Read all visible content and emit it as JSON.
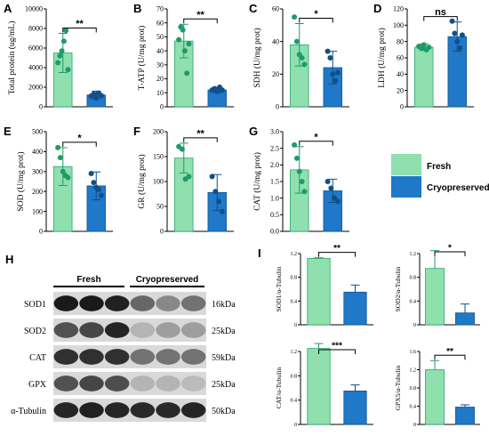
{
  "figure": {
    "colors": {
      "fresh": "#8fe0ae",
      "fresh_edge": "#29a86b",
      "cryo": "#1f78c8",
      "cryo_edge": "#14558f",
      "pt_fresh": "#1f9a69",
      "pt_cryo": "#114f89"
    },
    "legend": {
      "fresh": "Fresh",
      "cryo": "Cryopreserved"
    }
  },
  "chart_data": [
    {
      "id": "A",
      "type": "bar",
      "panel_letter": "A",
      "ylabel": "Total protein (ug/mL)",
      "ylim": [
        0,
        10000
      ],
      "yticks": [
        "0",
        "2000",
        "4000",
        "6000",
        "8000",
        "10000"
      ],
      "ytick_values": [
        0,
        2000,
        4000,
        6000,
        8000,
        10000
      ],
      "significance": "**",
      "series": [
        {
          "name": "Fresh",
          "values": [
            5500
          ],
          "err": 2000,
          "points": [
            4500,
            5200,
            5700,
            6700,
            7800,
            3800
          ]
        },
        {
          "name": "Cryopreserved",
          "values": [
            1200
          ],
          "err": 400,
          "points": [
            1100,
            1300,
            900,
            1400,
            1150
          ]
        }
      ]
    },
    {
      "id": "B",
      "type": "bar",
      "panel_letter": "B",
      "ylabel": "T-ATP (U/mg prot)",
      "ylim": [
        0,
        70
      ],
      "yticks": [
        "0",
        "10",
        "20",
        "30",
        "40",
        "50",
        "60",
        "70"
      ],
      "ytick_values": [
        0,
        10,
        20,
        30,
        40,
        50,
        60,
        70
      ],
      "significance": "**",
      "series": [
        {
          "name": "Fresh",
          "values": [
            47
          ],
          "err": 12,
          "points": [
            48,
            57,
            55,
            40,
            24,
            45
          ]
        },
        {
          "name": "Cryopreserved",
          "values": [
            12
          ],
          "err": 2,
          "points": [
            12,
            13,
            11,
            14,
            12
          ]
        }
      ]
    },
    {
      "id": "C",
      "type": "bar",
      "panel_letter": "C",
      "ylabel": "SDH (U/mg prot)",
      "ylim": [
        0,
        60
      ],
      "yticks": [
        "0",
        "20",
        "40",
        "60"
      ],
      "ytick_values": [
        0,
        20,
        40,
        60
      ],
      "significance": "*",
      "series": [
        {
          "name": "Fresh",
          "values": [
            38
          ],
          "err": 13,
          "points": [
            55,
            40,
            32,
            30,
            26
          ]
        },
        {
          "name": "Cryopreserved",
          "values": [
            24
          ],
          "err": 10,
          "points": [
            34,
            30,
            20,
            16,
            21
          ]
        }
      ]
    },
    {
      "id": "D",
      "type": "bar",
      "panel_letter": "D",
      "ylabel": "LDH (U/mg prot)",
      "ylim": [
        0,
        120
      ],
      "yticks": [
        "0",
        "20",
        "40",
        "60",
        "80",
        "100",
        "120"
      ],
      "ytick_values": [
        0,
        20,
        40,
        60,
        80,
        100,
        120
      ],
      "significance": "ns",
      "series": [
        {
          "name": "Fresh",
          "values": [
            73
          ],
          "err": 4,
          "points": [
            74,
            72,
            76,
            70,
            73
          ]
        },
        {
          "name": "Cryopreserved",
          "values": [
            86
          ],
          "err": 18,
          "points": [
            105,
            90,
            80,
            72,
            88
          ]
        }
      ]
    },
    {
      "id": "E",
      "type": "bar",
      "panel_letter": "E",
      "ylabel": "SOD (U/mg prot)",
      "ylim": [
        0,
        500
      ],
      "yticks": [
        "0",
        "100",
        "200",
        "300",
        "400",
        "500"
      ],
      "ytick_values": [
        0,
        100,
        200,
        300,
        400,
        500
      ],
      "significance": "*",
      "series": [
        {
          "name": "Fresh",
          "values": [
            325
          ],
          "err": 95,
          "points": [
            420,
            370,
            300,
            280,
            270
          ]
        },
        {
          "name": "Cryopreserved",
          "values": [
            228
          ],
          "err": 70,
          "points": [
            290,
            245,
            220,
            210,
            180
          ]
        }
      ]
    },
    {
      "id": "F",
      "type": "bar",
      "panel_letter": "F",
      "ylabel": "GR (U/mg prot)",
      "ylim": [
        0,
        200
      ],
      "yticks": [
        "0",
        "50",
        "100",
        "150",
        "200"
      ],
      "ytick_values": [
        0,
        50,
        100,
        150,
        200
      ],
      "significance": "**",
      "series": [
        {
          "name": "Fresh",
          "values": [
            147
          ],
          "err": 30,
          "points": [
            170,
            165,
            105,
            110
          ]
        },
        {
          "name": "Cryopreserved",
          "values": [
            78
          ],
          "err": 36,
          "points": [
            110,
            80,
            60,
            40
          ]
        }
      ]
    },
    {
      "id": "G",
      "type": "bar",
      "panel_letter": "G",
      "ylabel": "CAT (U/mg prot)",
      "ylim": [
        0,
        3.0
      ],
      "yticks": [
        "0.0",
        "0.5",
        "1.0",
        "1.5",
        "2.0",
        "2.5",
        "3.0"
      ],
      "ytick_values": [
        0,
        0.5,
        1.0,
        1.5,
        2.0,
        2.5,
        3.0
      ],
      "significance": "*",
      "series": [
        {
          "name": "Fresh",
          "values": [
            1.85
          ],
          "err": 0.7,
          "points": [
            2.6,
            2.2,
            1.8,
            1.5,
            1.2
          ]
        },
        {
          "name": "Cryopreserved",
          "values": [
            1.22
          ],
          "err": 0.35,
          "points": [
            1.5,
            1.3,
            1.0,
            0.9
          ]
        }
      ]
    },
    {
      "id": "I1",
      "type": "bar",
      "panel_letter": "I",
      "ylabel": "SOD1/α-Tubulin",
      "ylim": [
        0,
        1.2
      ],
      "yticks": [
        "0",
        "0.4",
        "0.8",
        "1.2"
      ],
      "ytick_values": [
        0,
        0.4,
        0.8,
        1.2
      ],
      "significance": "**",
      "series": [
        {
          "name": "Fresh",
          "values": [
            1.12
          ],
          "err": 0.01,
          "points": []
        },
        {
          "name": "Cryopreserved",
          "values": [
            0.55
          ],
          "err": 0.12,
          "points": []
        }
      ]
    },
    {
      "id": "I2",
      "type": "bar",
      "panel_letter": "",
      "ylabel": "SOD2/α-Tubulin",
      "ylim": [
        0,
        1.2
      ],
      "yticks": [
        "0",
        "0.4",
        "0.8",
        "1.2"
      ],
      "ytick_values": [
        0,
        0.4,
        0.8,
        1.2
      ],
      "significance": "*",
      "series": [
        {
          "name": "Fresh",
          "values": [
            0.95
          ],
          "err": 0.3,
          "points": []
        },
        {
          "name": "Cryopreserved",
          "values": [
            0.2
          ],
          "err": 0.15,
          "points": []
        }
      ]
    },
    {
      "id": "I3",
      "type": "bar",
      "panel_letter": "",
      "ylabel": "CAT/α-Tubulin",
      "ylim": [
        0,
        1.2
      ],
      "yticks": [
        "0",
        "0.4",
        "0.8",
        "1.2"
      ],
      "ytick_values": [
        0,
        0.4,
        0.8,
        1.2
      ],
      "significance": "***",
      "series": [
        {
          "name": "Fresh",
          "values": [
            1.25
          ],
          "err": 0.08,
          "points": []
        },
        {
          "name": "Cryopreserved",
          "values": [
            0.55
          ],
          "err": 0.1,
          "points": []
        }
      ]
    },
    {
      "id": "I4",
      "type": "bar",
      "panel_letter": "",
      "ylabel": "GPX5/α-Tubulin",
      "ylim": [
        0,
        1.6
      ],
      "yticks": [
        "0",
        "0.4",
        "0.8",
        "1.2",
        "1.6"
      ],
      "ytick_values": [
        0,
        0.4,
        0.8,
        1.2,
        1.6
      ],
      "significance": "**",
      "series": [
        {
          "name": "Fresh",
          "values": [
            1.2
          ],
          "err": 0.2,
          "points": []
        },
        {
          "name": "Cryopreserved",
          "values": [
            0.38
          ],
          "err": 0.05,
          "points": []
        }
      ]
    }
  ],
  "western_blot": {
    "panel_letter": "H",
    "group_labels": [
      "Fresh",
      "Cryopreserved"
    ],
    "bands": [
      {
        "protein": "SOD1",
        "size": "16kDa",
        "intensity": [
          0.95,
          0.95,
          0.92,
          0.6,
          0.45,
          0.55
        ]
      },
      {
        "protein": "SOD2",
        "size": "25kDa",
        "intensity": [
          0.7,
          0.75,
          0.9,
          0.25,
          0.35,
          0.35
        ]
      },
      {
        "protein": "CAT",
        "size": "59kDa",
        "intensity": [
          0.85,
          0.85,
          0.85,
          0.55,
          0.55,
          0.55
        ]
      },
      {
        "protein": "GPX",
        "size": "25kDa",
        "intensity": [
          0.7,
          0.75,
          0.72,
          0.25,
          0.25,
          0.22
        ]
      },
      {
        "protein": "α-Tubulin",
        "size": "50kDa",
        "intensity": [
          0.9,
          0.92,
          0.9,
          0.88,
          0.88,
          0.9
        ]
      }
    ]
  }
}
